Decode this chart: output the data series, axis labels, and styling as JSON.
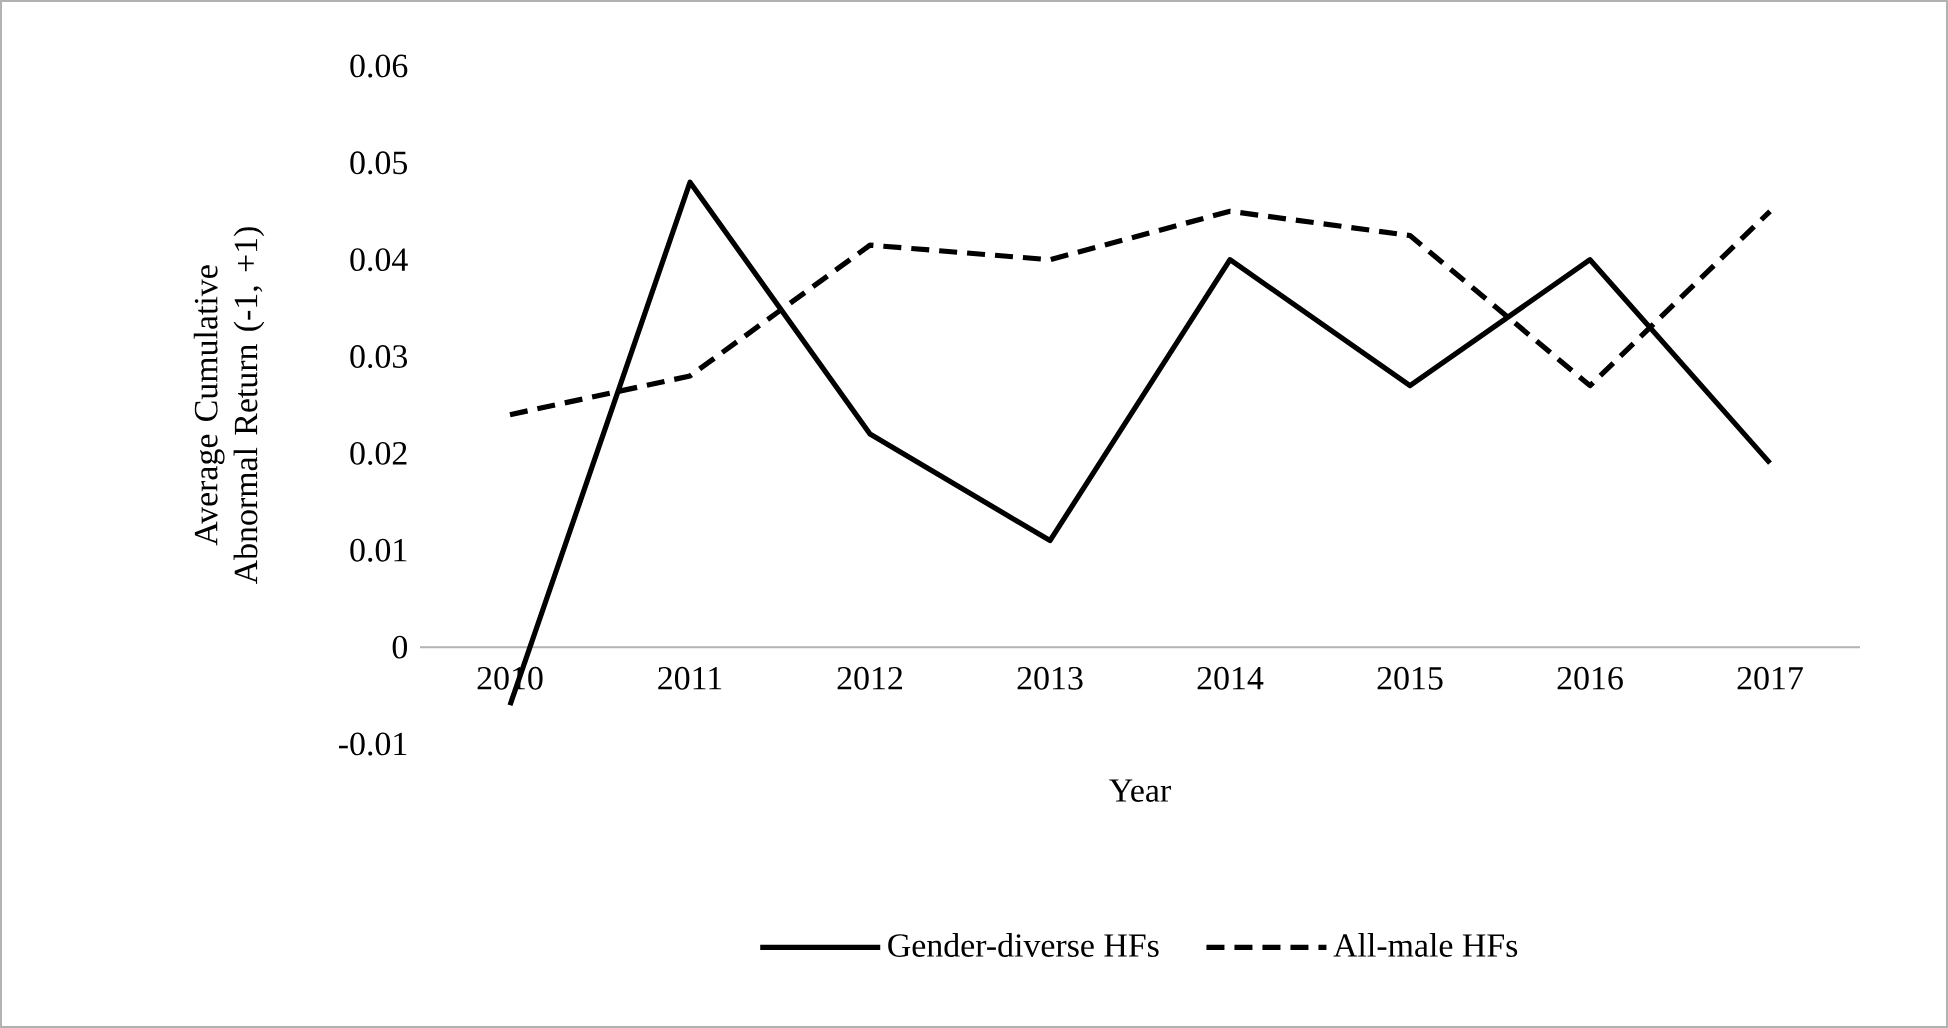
{
  "chart_data": {
    "type": "line",
    "xlabel": "Year",
    "ylabel": "Average Cumulative Abnormal Return (-1, +1)",
    "categories": [
      "2010",
      "2011",
      "2012",
      "2013",
      "2014",
      "2015",
      "2016",
      "2017"
    ],
    "series": [
      {
        "name": "Gender-diverse HFs",
        "color": "#000000",
        "line_style": "solid",
        "values": [
          -0.006,
          0.048,
          0.022,
          0.011,
          0.04,
          0.027,
          0.04,
          0.019
        ]
      },
      {
        "name": "All-male HFs",
        "color": "#000000",
        "line_style": "dashed",
        "values": [
          0.024,
          0.028,
          0.0415,
          0.04,
          0.045,
          0.0425,
          0.027,
          0.045
        ]
      }
    ],
    "ylim": [
      -0.01,
      0.06
    ],
    "yticks": [
      -0.01,
      0,
      0.01,
      0.02,
      0.03,
      0.04,
      0.05,
      0.06
    ],
    "legend": "bottom"
  }
}
